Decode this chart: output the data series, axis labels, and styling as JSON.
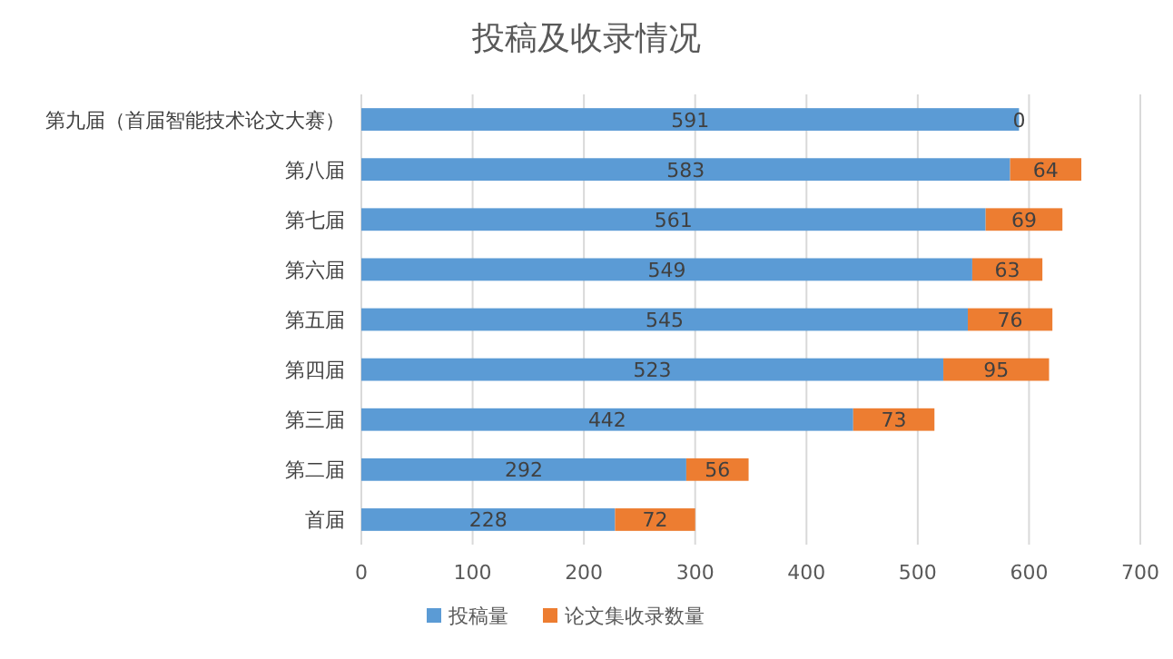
{
  "chart_data": {
    "type": "bar",
    "orientation": "horizontal",
    "stacked": true,
    "title": "投稿及收录情况",
    "categories": [
      "第九届（首届智能技术论文大赛）",
      "第八届",
      "第七届",
      "第六届",
      "第五届",
      "第四届",
      "第三届",
      "第二届",
      "首届"
    ],
    "series": [
      {
        "name": "投稿量",
        "color": "#5b9bd5",
        "values": [
          591,
          583,
          561,
          549,
          545,
          523,
          442,
          292,
          228
        ]
      },
      {
        "name": "论文集收录数量",
        "color": "#ed7d31",
        "values": [
          0,
          64,
          69,
          63,
          76,
          95,
          73,
          56,
          72
        ]
      }
    ],
    "xlim": [
      0,
      700
    ],
    "xticks": [
      0,
      100,
      200,
      300,
      400,
      500,
      600,
      700
    ],
    "grid": "x",
    "legend": "bottom",
    "data_labels": true
  }
}
